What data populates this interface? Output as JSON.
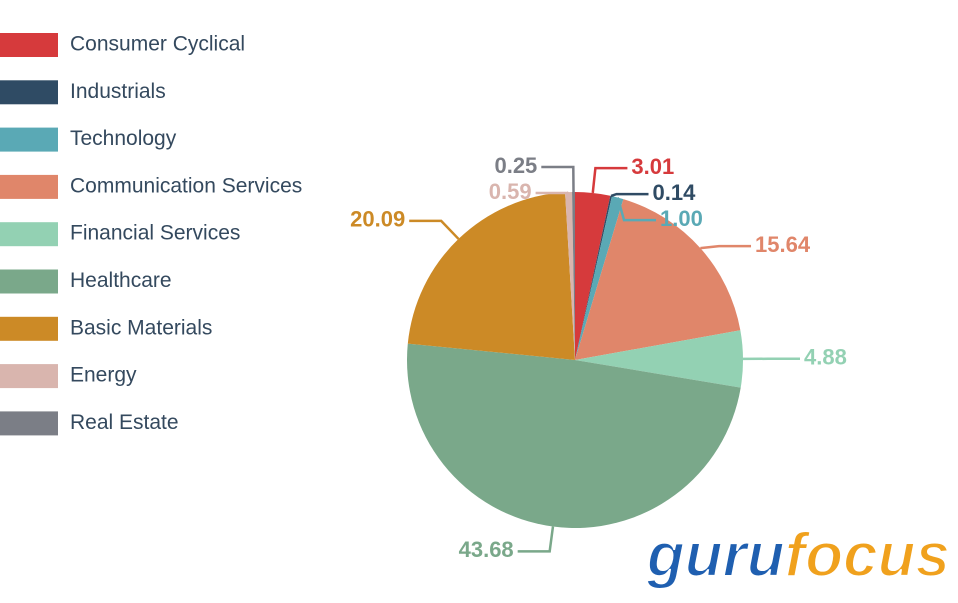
{
  "chart_data": {
    "type": "pie",
    "categories": [
      "Consumer Cyclical",
      "Industrials",
      "Technology",
      "Communication Services",
      "Financial Services",
      "Healthcare",
      "Basic Materials",
      "Energy",
      "Real Estate"
    ],
    "values": [
      3.01,
      0.14,
      1.0,
      15.64,
      4.88,
      43.68,
      20.09,
      0.59,
      0.25
    ],
    "value_labels": [
      "3.01",
      "0.14",
      "1.00",
      "15.64",
      "4.88",
      "43.68",
      "20.09",
      "0.59",
      "0.25"
    ],
    "colors": [
      "#d63a3c",
      "#2f4b64",
      "#5aa9b5",
      "#e0866a",
      "#93d1b3",
      "#7aa88a",
      "#cc8a26",
      "#d9b5ae",
      "#7b7e86"
    ],
    "legend": "left"
  },
  "logo": {
    "first": "guru",
    "second": "focus"
  }
}
